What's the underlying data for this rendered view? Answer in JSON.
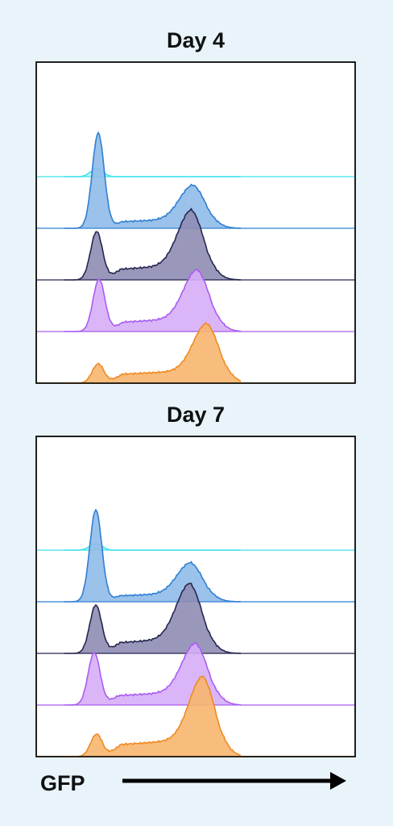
{
  "panels": [
    {
      "title": "Day 4",
      "tracks": [
        {
          "stroke": "#3fe3ea",
          "fill": "#9fe9f0"
        },
        {
          "stroke": "#2f7fd3",
          "fill": "#8fbbe9"
        },
        {
          "stroke": "#26264f",
          "fill": "#8e8db4"
        },
        {
          "stroke": "#a95cf0",
          "fill": "#d6aef8"
        },
        {
          "stroke": "#ef8a22",
          "fill": "#f7b66e"
        }
      ]
    },
    {
      "title": "Day 7",
      "tracks": [
        {
          "stroke": "#3fe3ea",
          "fill": "#9fe9f0"
        },
        {
          "stroke": "#2f7fd3",
          "fill": "#8fbbe9"
        },
        {
          "stroke": "#26264f",
          "fill": "#8e8db4"
        },
        {
          "stroke": "#a95cf0",
          "fill": "#d6aef8"
        },
        {
          "stroke": "#ef8a22",
          "fill": "#f7b66e"
        }
      ]
    }
  ],
  "axis_label": "GFP"
}
